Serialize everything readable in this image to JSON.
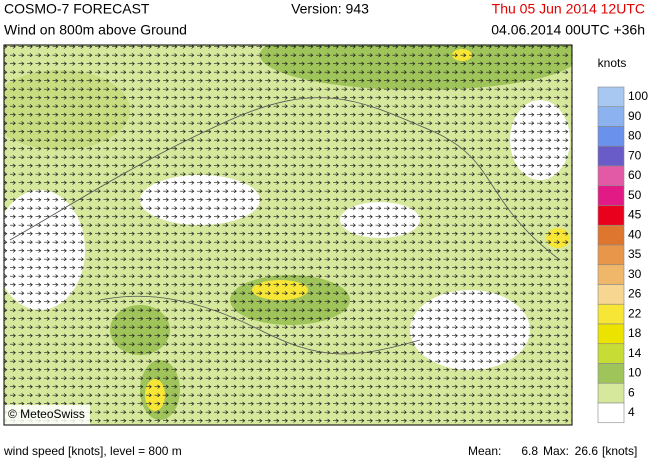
{
  "header": {
    "title": "COSMO-7 FORECAST",
    "version": "Version: 943",
    "valid_time": "Thu 05 Jun 2014 12UTC",
    "subtitle": "Wind on 800m above Ground",
    "run": "04.06.2014 00UTC +36h"
  },
  "map": {
    "credit": "© MeteoSwiss"
  },
  "legend": {
    "title": "knots",
    "bins": [
      {
        "value": 100,
        "color": "#a8c8f2"
      },
      {
        "value": 90,
        "color": "#8cb2f0"
      },
      {
        "value": 80,
        "color": "#6a92ec"
      },
      {
        "value": 70,
        "color": "#6a5cc8"
      },
      {
        "value": 60,
        "color": "#e25aa6"
      },
      {
        "value": 50,
        "color": "#e21a86"
      },
      {
        "value": 45,
        "color": "#e8001c"
      },
      {
        "value": 40,
        "color": "#de7630"
      },
      {
        "value": 35,
        "color": "#e8964a"
      },
      {
        "value": 30,
        "color": "#f0b66a"
      },
      {
        "value": 26,
        "color": "#f6d690"
      },
      {
        "value": 22,
        "color": "#f8e636"
      },
      {
        "value": 18,
        "color": "#ece400"
      },
      {
        "value": 14,
        "color": "#c8dc36"
      },
      {
        "value": 10,
        "color": "#9ec45a"
      },
      {
        "value": 6,
        "color": "#d6e89c"
      },
      {
        "value": 4,
        "color": "#ffffff"
      }
    ]
  },
  "footer": {
    "description": "wind speed [knots], level = 800 m",
    "mean_label": "Mean:",
    "mean": 6.8,
    "max_label": "Max:",
    "max": 26.6,
    "unit": "[knots]"
  }
}
